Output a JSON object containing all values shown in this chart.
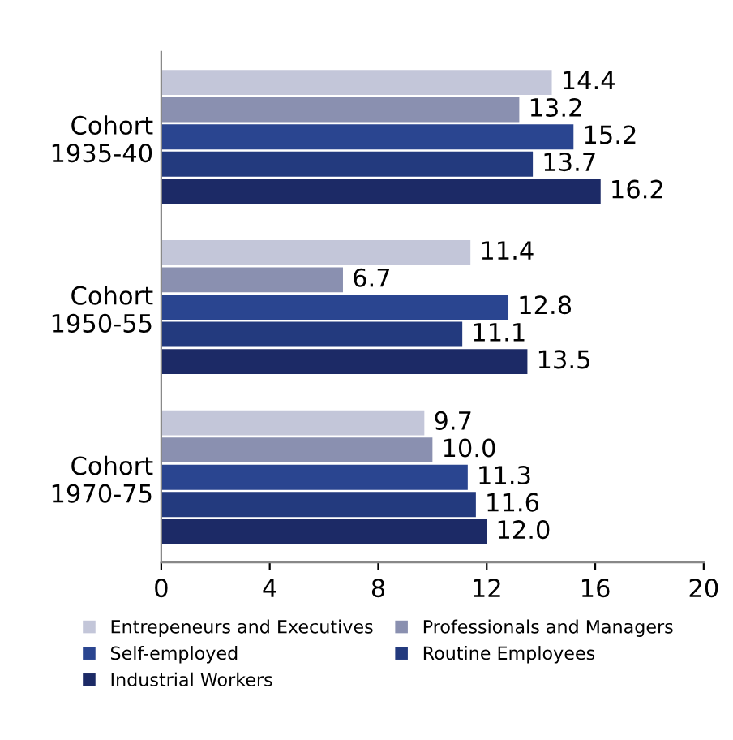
{
  "chart_data": {
    "type": "bar",
    "orientation": "horizontal",
    "categories": [
      "Cohort\n1935-40",
      "Cohort\n1950-55",
      "Cohort\n1970-75"
    ],
    "series": [
      {
        "name": "Entrepeneurs and Executives",
        "color": "#c3c6d9",
        "values": [
          14.4,
          11.4,
          9.7
        ],
        "value_labels": [
          "14.4",
          "11.4",
          "9.7"
        ]
      },
      {
        "name": "Professionals and Managers",
        "color": "#8a90b0",
        "values": [
          13.2,
          6.7,
          10.0
        ],
        "value_labels": [
          "13.2",
          "6.7",
          "10.0"
        ]
      },
      {
        "name": "Self-employed",
        "color": "#2a4590",
        "values": [
          15.2,
          12.8,
          11.3
        ],
        "value_labels": [
          "15.2",
          "12.8",
          "11.3"
        ]
      },
      {
        "name": "Routine Employees",
        "color": "#233a7e",
        "values": [
          13.7,
          11.1,
          11.6
        ],
        "value_labels": [
          "13.7",
          "11.1",
          "11.6"
        ]
      },
      {
        "name": "Industrial Workers",
        "color": "#1c2a66",
        "values": [
          16.2,
          13.5,
          12.0
        ],
        "value_labels": [
          "16.2",
          "13.5",
          "12.0"
        ]
      }
    ],
    "xlim": [
      0,
      20
    ],
    "xticks": [
      0,
      4,
      8,
      12,
      16,
      20
    ],
    "legend": "bottom",
    "grid": false
  }
}
